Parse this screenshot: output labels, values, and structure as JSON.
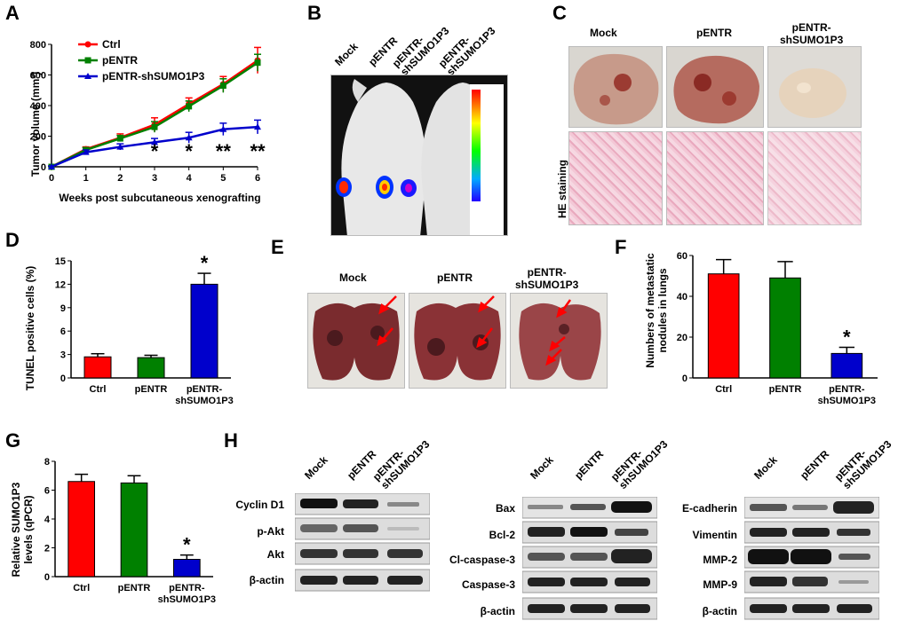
{
  "panels": {
    "A": "A",
    "B": "B",
    "C": "C",
    "D": "D",
    "E": "E",
    "F": "F",
    "G": "G",
    "H": "H"
  },
  "groups": {
    "mock": "Mock",
    "pentr": "pENTR",
    "sh_line1": "pENTR-",
    "sh_line2": "shSUMO1P3",
    "sh_full": "pENTR-shSUMO1P3",
    "ctrl": "Ctrl"
  },
  "colors": {
    "ctrl": "#ff0000",
    "pentr": "#008000",
    "sh": "#0000cc"
  },
  "panelA": {
    "ylabel": "Tumor volume (mm³)",
    "xlabel": "Weeks post subcutaneous xenografting",
    "legend": [
      "Ctrl",
      "pENTR",
      "pENTR-shSUMO1P3"
    ],
    "significance": [
      "*",
      "*",
      "**",
      "**"
    ]
  },
  "panelC": {
    "he_label": "HE staining"
  },
  "panelD": {
    "ylabel": "TUNEL positive cells (%)"
  },
  "panelF": {
    "ylabel_line1": "Numbers of metastatic",
    "ylabel_line2": "nodules in lungs"
  },
  "panelG": {
    "ylabel_line1": "Relative SUMO1P3",
    "ylabel_line2": "levels (qPCR)"
  },
  "panelH": {
    "blot1": [
      "Cyclin D1",
      "p-Akt",
      "Akt",
      "β-actin"
    ],
    "blot2": [
      "Bax",
      "Bcl-2",
      "Cl-caspase-3",
      "Caspase-3",
      "β-actin"
    ],
    "blot3": [
      "E-cadherin",
      "Vimentin",
      "MMP-2",
      "MMP-9",
      "β-actin"
    ]
  },
  "chart_data": [
    {
      "type": "line",
      "x": [
        0,
        1,
        2,
        3,
        4,
        5,
        6
      ],
      "series": [
        {
          "name": "Ctrl",
          "values": [
            0,
            115,
            190,
            275,
            410,
            540,
            695
          ],
          "errors": [
            5,
            15,
            25,
            45,
            40,
            50,
            85
          ]
        },
        {
          "name": "pENTR",
          "values": [
            0,
            110,
            185,
            260,
            395,
            530,
            680
          ],
          "errors": [
            5,
            15,
            20,
            35,
            35,
            45,
            55
          ]
        },
        {
          "name": "pENTR-shSUMO1P3",
          "values": [
            0,
            95,
            130,
            160,
            190,
            245,
            260
          ],
          "errors": [
            5,
            15,
            20,
            25,
            35,
            40,
            45
          ]
        }
      ],
      "ylabel": "Tumor volume (mm³)",
      "xlabel": "Weeks post subcutaneous xenografting",
      "ylim": [
        0,
        800
      ],
      "yticks": [
        0,
        200,
        400,
        600,
        800
      ],
      "xticks": [
        0,
        1,
        2,
        3,
        4,
        5,
        6
      ]
    },
    {
      "type": "bar",
      "categories": [
        "Ctrl",
        "pENTR",
        "pENTR-shSUMO1P3"
      ],
      "values": [
        2.7,
        2.6,
        12.0
      ],
      "errors": [
        0.4,
        0.3,
        1.4
      ],
      "ylabel": "TUNEL positive cells (%)",
      "ylim": [
        0,
        15
      ],
      "yticks": [
        0,
        3,
        6,
        9,
        12,
        15
      ],
      "significance": [
        "",
        "",
        "*"
      ]
    },
    {
      "type": "bar",
      "categories": [
        "Ctrl",
        "pENTR",
        "pENTR-shSUMO1P3"
      ],
      "values": [
        51,
        49,
        12
      ],
      "errors": [
        7,
        8,
        3
      ],
      "ylabel": "Numbers of metastatic nodules in lungs",
      "ylim": [
        0,
        60
      ],
      "yticks": [
        0,
        20,
        40,
        60
      ],
      "significance": [
        "",
        "",
        "*"
      ]
    },
    {
      "type": "bar",
      "categories": [
        "Ctrl",
        "pENTR",
        "pENTR-shSUMO1P3"
      ],
      "values": [
        6.6,
        6.5,
        1.2
      ],
      "errors": [
        0.5,
        0.5,
        0.3
      ],
      "ylabel": "Relative SUMO1P3 levels (qPCR)",
      "ylim": [
        0,
        8
      ],
      "yticks": [
        0,
        2,
        4,
        6,
        8
      ],
      "significance": [
        "",
        "",
        "*"
      ]
    }
  ]
}
